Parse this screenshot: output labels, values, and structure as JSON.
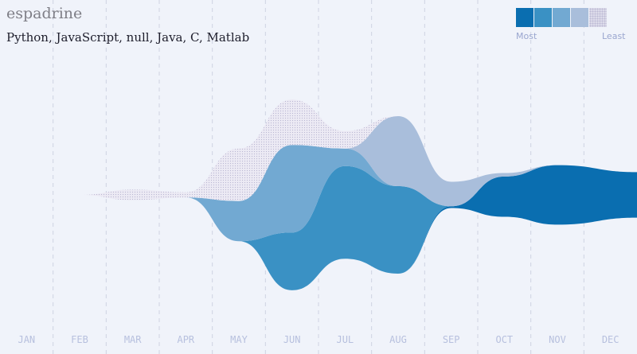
{
  "header": {
    "username": "espadrine",
    "languages": "Python, JavaScript, null, Java, C, Matlab"
  },
  "legend": {
    "most": "Most",
    "least": "Least",
    "colors": [
      "#0a6eb0",
      "#3a91c4",
      "#72a9d2",
      "#a9bedb",
      "#dcdbea"
    ]
  },
  "chart_data": {
    "type": "area",
    "title": "espadrine",
    "subtitle": "Python, JavaScript, null, Java, C, Matlab",
    "categories": [
      "JAN",
      "FEB",
      "MAR",
      "APR",
      "MAY",
      "JUN",
      "JUL",
      "AUG",
      "SEP",
      "OCT",
      "NOV",
      "DEC"
    ],
    "series": [
      {
        "name": "Python",
        "color": "#0a6eb0",
        "values": [
          0,
          0,
          0,
          0,
          0,
          0,
          0,
          0,
          1,
          23,
          34,
          26
        ]
      },
      {
        "name": "JavaScript",
        "color": "#3a91c4",
        "values": [
          0,
          0,
          0,
          0,
          0,
          33,
          53,
          50,
          0,
          0,
          0,
          0
        ]
      },
      {
        "name": "null",
        "color": "#72a9d2",
        "values": [
          0,
          0,
          0,
          0,
          23,
          50,
          10,
          0,
          0,
          0,
          0,
          0
        ]
      },
      {
        "name": "Java",
        "color": "#a9bedb",
        "values": [
          0,
          0,
          0,
          0,
          0,
          0,
          0,
          40,
          14,
          2,
          0,
          0
        ]
      },
      {
        "name": "C",
        "color": "#d4d5e6",
        "dotted": true,
        "values": [
          0,
          0,
          6,
          3,
          30,
          26,
          10,
          0,
          0,
          0,
          0,
          0
        ]
      }
    ],
    "layout": "streamgraph",
    "grid": "vertical dashed",
    "legend_position": "top-right"
  }
}
